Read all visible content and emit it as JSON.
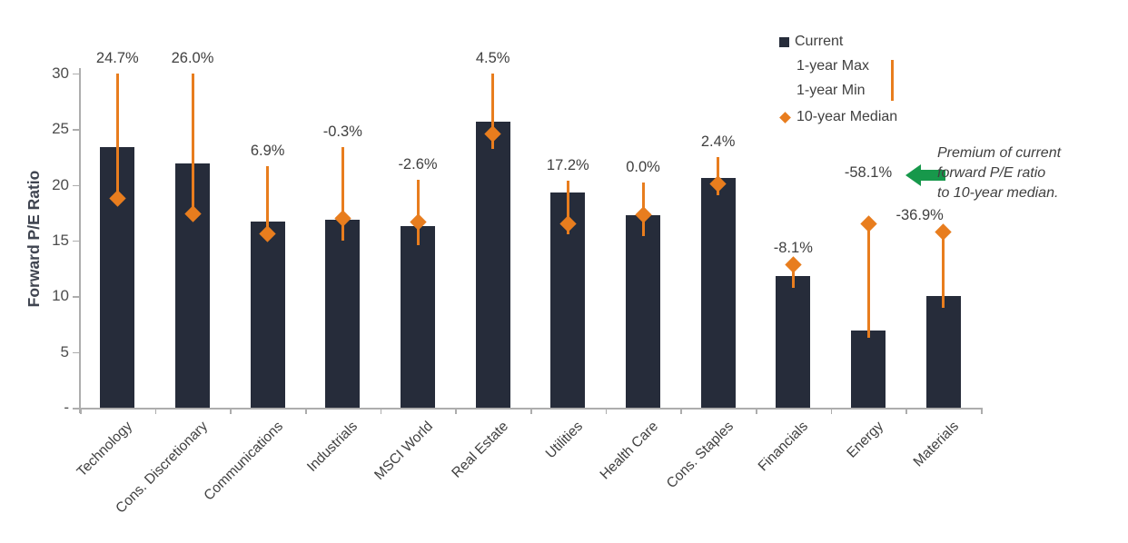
{
  "chart_data": {
    "type": "bar",
    "title": "",
    "xlabel": "",
    "ylabel": "Forward P/E Ratio",
    "ylim": [
      0,
      30
    ],
    "grid": false,
    "legend_position": "top-right",
    "ytick_values": [
      0,
      5,
      10,
      15,
      20,
      25,
      30
    ],
    "ytick_labels": [
      "-",
      "5",
      "10",
      "15",
      "20",
      "25",
      "30"
    ],
    "categories": [
      "Technology",
      "Cons. Discretionary",
      "Communications",
      "Industrials",
      "MSCI World",
      "Real Estate",
      "Utilities",
      "Health Care",
      "Cons. Staples",
      "Financials",
      "Energy",
      "Materials"
    ],
    "series": [
      {
        "name": "Current",
        "type": "bar",
        "values": [
          23.4,
          21.9,
          16.7,
          16.9,
          16.3,
          25.7,
          19.3,
          17.3,
          20.6,
          11.8,
          6.9,
          10.0
        ]
      },
      {
        "name": "1-year Max",
        "type": "errorbar-top",
        "values": [
          30.0,
          30.0,
          21.7,
          23.4,
          20.5,
          30.0,
          20.4,
          20.2,
          22.5,
          13.0,
          16.4,
          15.9
        ]
      },
      {
        "name": "1-year Min",
        "type": "errorbar-bottom",
        "values": [
          18.5,
          17.0,
          15.0,
          15.0,
          14.6,
          23.2,
          15.6,
          15.4,
          19.1,
          10.8,
          6.3,
          9.0
        ]
      },
      {
        "name": "10-year Median",
        "type": "diamond",
        "values": [
          18.8,
          17.4,
          15.6,
          17.0,
          16.7,
          24.6,
          16.5,
          17.3,
          20.1,
          12.8,
          16.5,
          15.8
        ]
      }
    ],
    "point_labels": [
      "24.7%",
      "26.0%",
      "6.9%",
      "-0.3%",
      "-2.6%",
      "4.5%",
      "17.2%",
      "0.0%",
      "2.4%",
      "-8.1%",
      "-58.1%",
      "-36.9%"
    ]
  },
  "legend": {
    "items": [
      {
        "label": "Current",
        "marker": "square"
      },
      {
        "label": "1-year Max",
        "marker": "line"
      },
      {
        "label": "1-year Min",
        "marker": "line"
      },
      {
        "label": "10-year Median",
        "marker": "diamond"
      }
    ]
  },
  "annotation": {
    "lines": [
      "Premium of current",
      "forward P/E ratio",
      "to 10-year median."
    ]
  },
  "colors": {
    "bar": "#262C3A",
    "orange": "#E87D1E",
    "green": "#17984B",
    "text": "#404040",
    "axis": "#ADADAD"
  }
}
